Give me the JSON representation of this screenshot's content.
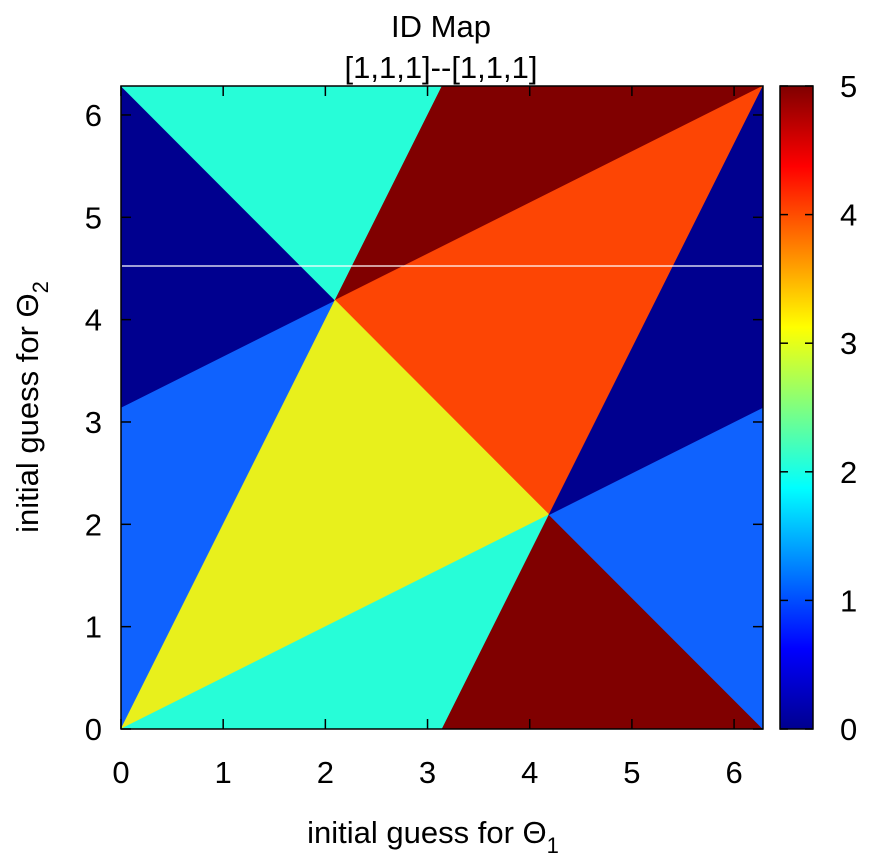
{
  "chart_data": {
    "type": "heatmap",
    "title": "ID Map",
    "subtitle": "[1,1,1]--[1,1,1]",
    "xlabel": {
      "text": "initial guess for Θ",
      "subscript": "1"
    },
    "ylabel": {
      "text": "initial guess for Θ",
      "subscript": "2"
    },
    "xlim": [
      0,
      6.283
    ],
    "ylim": [
      0,
      6.283
    ],
    "xticks": [
      "0",
      "1",
      "2",
      "3",
      "4",
      "5",
      "6"
    ],
    "yticks": [
      "0",
      "1",
      "2",
      "3",
      "4",
      "5",
      "6"
    ],
    "xtick_values": [
      0,
      1,
      2,
      3,
      4,
      5,
      6
    ],
    "ytick_values": [
      0,
      1,
      2,
      3,
      4,
      5,
      6
    ],
    "colorbar": {
      "range": [
        0,
        5
      ],
      "ticks": [
        "0",
        "1",
        "2",
        "3",
        "4",
        "5"
      ],
      "tick_values": [
        0,
        1,
        2,
        3,
        4,
        5
      ],
      "palette": "jet",
      "stops": [
        {
          "value": 0,
          "color": "#00008f"
        },
        {
          "value": 0.625,
          "color": "#0000ff"
        },
        {
          "value": 1.875,
          "color": "#00ffff"
        },
        {
          "value": 3.125,
          "color": "#ffff00"
        },
        {
          "value": 4.375,
          "color": "#ff0000"
        },
        {
          "value": 5,
          "color": "#800000"
        }
      ]
    },
    "regions": [
      {
        "id": 1,
        "color": "#0f62fe",
        "points": [
          [
            0,
            0
          ],
          [
            2.094,
            4.189
          ],
          [
            0,
            3.142
          ]
        ]
      },
      {
        "id": 0,
        "color": "#00008f",
        "points": [
          [
            0,
            3.142
          ],
          [
            2.094,
            4.189
          ],
          [
            0,
            6.283
          ]
        ]
      },
      {
        "id": 2,
        "color": "#27fdd8",
        "points": [
          [
            0,
            6.283
          ],
          [
            3.142,
            6.283
          ],
          [
            2.094,
            4.189
          ]
        ]
      },
      {
        "id": 5,
        "color": "#800000",
        "points": [
          [
            3.142,
            6.283
          ],
          [
            6.283,
            6.283
          ],
          [
            2.094,
            4.189
          ]
        ]
      },
      {
        "id": 4,
        "color": "#fd4504",
        "points": [
          [
            2.094,
            4.189
          ],
          [
            6.283,
            6.283
          ],
          [
            4.189,
            2.094
          ]
        ]
      },
      {
        "id": 3,
        "color": "#e8f01c",
        "points": [
          [
            0,
            0
          ],
          [
            2.094,
            4.189
          ],
          [
            4.189,
            2.094
          ]
        ]
      },
      {
        "id": 2,
        "color": "#27fdd8",
        "points": [
          [
            0,
            0
          ],
          [
            3.142,
            0
          ],
          [
            4.189,
            2.094
          ]
        ]
      },
      {
        "id": 5,
        "color": "#800000",
        "points": [
          [
            3.142,
            0
          ],
          [
            6.283,
            0
          ],
          [
            4.189,
            2.094
          ]
        ]
      },
      {
        "id": 1,
        "color": "#0f62fe",
        "points": [
          [
            6.283,
            0
          ],
          [
            6.283,
            3.142
          ],
          [
            4.189,
            2.094
          ]
        ]
      },
      {
        "id": 0,
        "color": "#00008f",
        "points": [
          [
            6.283,
            3.142
          ],
          [
            6.283,
            6.283
          ],
          [
            4.189,
            2.094
          ]
        ]
      }
    ],
    "grid": false
  }
}
